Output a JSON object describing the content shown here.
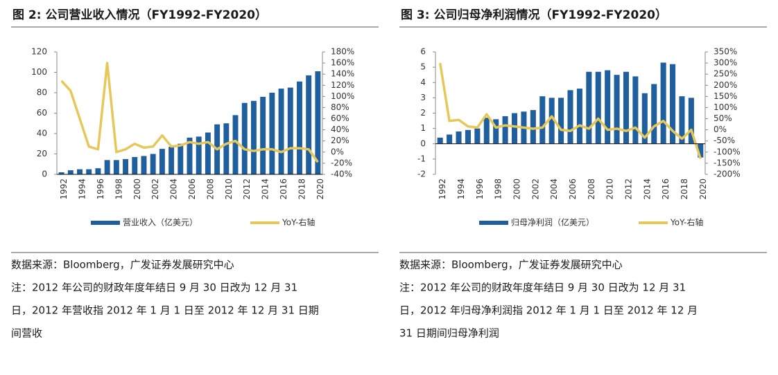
{
  "chart_data": [
    {
      "type": "bar",
      "title": "图 2:  公司营业收入情况（FY1992-FY2020）",
      "categories": [
        "1992",
        null,
        "1994",
        null,
        "1996",
        null,
        "1998",
        null,
        "2000",
        null,
        "2002",
        null,
        "2004",
        null,
        "2006",
        null,
        "2008",
        null,
        "2010",
        null,
        "2012",
        null,
        "2014",
        null,
        "2016",
        null,
        "2018",
        null,
        "2020"
      ],
      "series": [
        {
          "name": "营业收入（亿美元）",
          "color": "#1f5f9e",
          "values": [
            2,
            4,
            5,
            5,
            6,
            14,
            14,
            15,
            17,
            18,
            20,
            25,
            27,
            30,
            36,
            37,
            41,
            49,
            50,
            58,
            70,
            72,
            76,
            80,
            84,
            85,
            91,
            97,
            101
          ]
        },
        {
          "name": "YoY-右轴",
          "color": "#e8c75a",
          "type": "line",
          "axis": "y2",
          "values": [
            128,
            110,
            60,
            10,
            5,
            160,
            0,
            5,
            15,
            8,
            10,
            30,
            10,
            12,
            18,
            15,
            18,
            5,
            15,
            20,
            5,
            2,
            5,
            5,
            0,
            7,
            7,
            5,
            -18
          ]
        }
      ],
      "ylim": [
        0,
        120
      ],
      "yticks": [
        0,
        20,
        40,
        60,
        80,
        100,
        120
      ],
      "y2lim": [
        -40,
        180
      ],
      "y2ticks": [
        {
          "value": -40,
          "label": "-40%"
        },
        {
          "value": -20,
          "label": "-20%"
        },
        {
          "value": 0,
          "label": "0%"
        },
        {
          "value": 20,
          "label": "20%"
        },
        {
          "value": 40,
          "label": "40%"
        },
        {
          "value": 60,
          "label": "60%"
        },
        {
          "value": 80,
          "label": "80%"
        },
        {
          "value": 100,
          "label": "100%"
        },
        {
          "value": 120,
          "label": "120%"
        },
        {
          "value": 140,
          "label": "140%"
        },
        {
          "value": 160,
          "label": "160%"
        },
        {
          "value": 180,
          "label": "180%"
        }
      ],
      "source": "数据来源：Bloomberg，广发证券发展研究中心",
      "notes": [
        "注：2012 年公司的财政年度年结日 9 月 30 日改为 12 月 31",
        "日，2012 年营收指 2012 年 1 月 1 日至 2012 年 12 月 31 日期",
        "间营收"
      ]
    },
    {
      "type": "bar",
      "title": "图 3:  公司归母净利润情况（FY1992-FY2020）",
      "categories": [
        "1992",
        null,
        "1994",
        null,
        "1996",
        null,
        "1998",
        null,
        "2000",
        null,
        "2002",
        null,
        "2004",
        null,
        "2006",
        null,
        "2008",
        null,
        "2010",
        null,
        "2012",
        null,
        "2014",
        null,
        "2016",
        null,
        "2018",
        null,
        "2020"
      ],
      "series": [
        {
          "name": "归母净利润（亿美元）",
          "color": "#1f5f9e",
          "values": [
            0.4,
            0.6,
            0.8,
            0.9,
            1.0,
            1.7,
            1.6,
            1.8,
            2.0,
            2.1,
            2.2,
            3.1,
            3.0,
            3.0,
            3.5,
            3.6,
            4.7,
            4.7,
            4.8,
            4.5,
            4.7,
            4.4,
            3.3,
            3.9,
            5.3,
            5.2,
            3.1,
            3.0,
            -0.9
          ]
        },
        {
          "name": "YoY-右轴",
          "color": "#e8c75a",
          "type": "line",
          "axis": "y2",
          "values": [
            300,
            40,
            45,
            15,
            10,
            70,
            10,
            20,
            15,
            10,
            5,
            10,
            60,
            0,
            -5,
            20,
            5,
            50,
            0,
            5,
            -5,
            10,
            -35,
            15,
            40,
            -5,
            -40,
            0,
            -130
          ]
        }
      ],
      "ylim": [
        -2,
        6
      ],
      "yticks": [
        -2,
        -1,
        0,
        1,
        2,
        3,
        4,
        5,
        6
      ],
      "y2lim": [
        -200,
        350
      ],
      "y2ticks": [
        {
          "value": -200,
          "label": "-200%"
        },
        {
          "value": -150,
          "label": "-150%"
        },
        {
          "value": -100,
          "label": "-100%"
        },
        {
          "value": -50,
          "label": "-50%"
        },
        {
          "value": 0,
          "label": "0%"
        },
        {
          "value": 50,
          "label": "50%"
        },
        {
          "value": 100,
          "label": "100%"
        },
        {
          "value": 150,
          "label": "150%"
        },
        {
          "value": 200,
          "label": "200%"
        },
        {
          "value": 250,
          "label": "250%"
        },
        {
          "value": 300,
          "label": "300%"
        },
        {
          "value": 350,
          "label": "350%"
        }
      ],
      "source": "数据来源：Bloomberg，广发证券发展研究中心",
      "notes": [
        "注：2012 年公司的财政年度年结日 9 月 30 日改为 12 月 31",
        "日，2012 年归母净利润指 2012 年 1 月 1 日至 2012 年 12 月",
        "31 日期间归母净利润"
      ]
    }
  ]
}
